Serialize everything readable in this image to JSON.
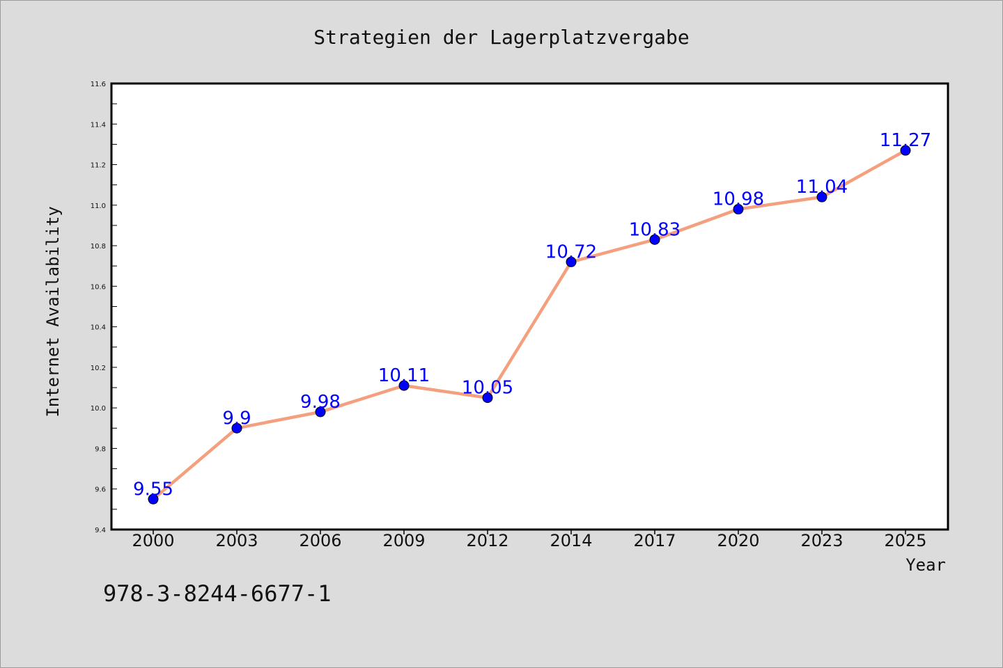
{
  "chart_data": {
    "type": "line",
    "title": "Strategien der Lagerplatzvergabe",
    "xlabel": "Year",
    "ylabel": "Internet Availability",
    "categories": [
      "2000",
      "2003",
      "2006",
      "2009",
      "2012",
      "2014",
      "2017",
      "2020",
      "2023",
      "2025"
    ],
    "series": [
      {
        "values": [
          9.55,
          9.9,
          9.98,
          10.11,
          10.05,
          10.72,
          10.83,
          10.98,
          11.04,
          11.27
        ],
        "data_labels": [
          "9.55",
          "9.9",
          "9.98",
          "10.11",
          "10.05",
          "10.72",
          "10.83",
          "10.98",
          "11.04",
          "11.27"
        ],
        "line_color": "#f4a07e",
        "marker_color": "#0000ff"
      }
    ],
    "ylim": [
      9.4,
      11.6
    ],
    "yticks": [
      "9.4",
      "9.6",
      "9.8",
      "10.0",
      "10.2",
      "10.4",
      "10.6",
      "10.8",
      "11.0",
      "11.2",
      "11.4",
      "11.6"
    ],
    "grid": false,
    "legend": "none"
  },
  "footer": {
    "isbn": "978-3-8244-6677-1"
  },
  "colors": {
    "background": "#dcdcdc",
    "plot_background": "#ffffff",
    "label_color": "#0000ff"
  }
}
